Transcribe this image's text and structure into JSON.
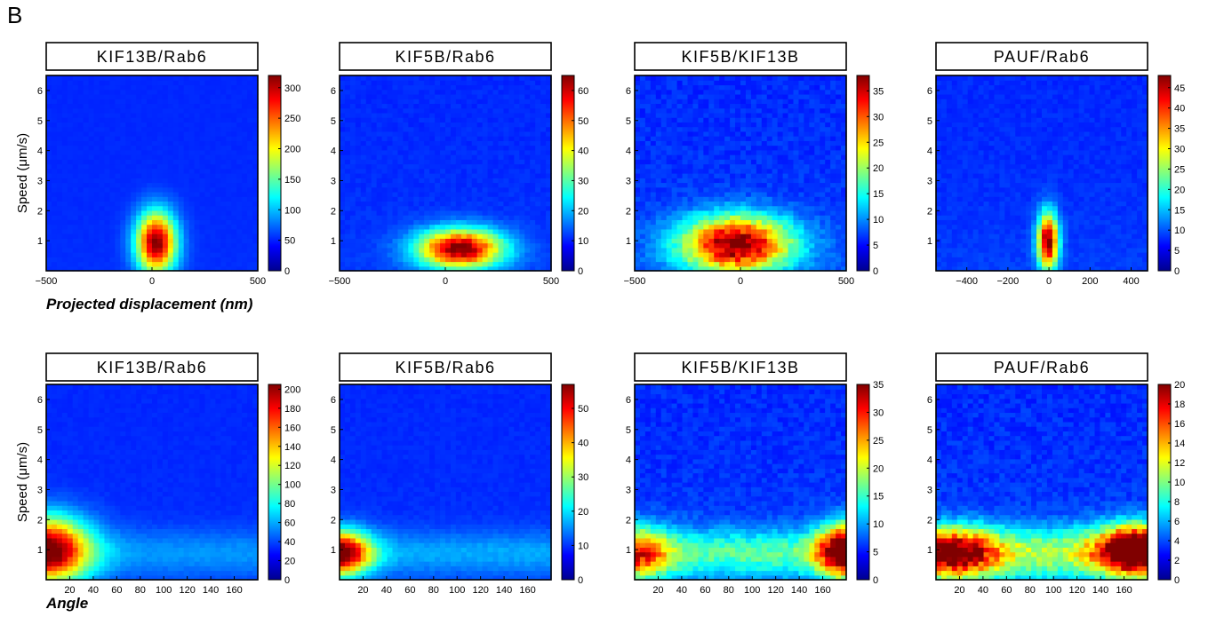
{
  "figure": {
    "panel_label": "B",
    "row_xlabels": [
      "Projected displacement (nm)",
      "Angle"
    ],
    "ylabel": "Speed (μm/s)"
  },
  "chart_data": [
    {
      "type": "heatmap",
      "title": "KIF13B/Rab6",
      "xlim": [
        -500,
        500
      ],
      "ylim": [
        0,
        6.5
      ],
      "xticks": [
        -500,
        0,
        500
      ],
      "xtick_labels": [
        "−500",
        "0",
        "500"
      ],
      "yticks": [
        1,
        2,
        3,
        4,
        5,
        6
      ],
      "colorbar": {
        "min": 0,
        "max": 320,
        "ticks": [
          0,
          50,
          100,
          150,
          200,
          250,
          300
        ]
      },
      "peak": {
        "x": 20,
        "y": 0.95,
        "sx": 65,
        "sy": 0.7
      },
      "noise": 0.04,
      "colormap": "jet"
    },
    {
      "type": "heatmap",
      "title": "KIF5B/Rab6",
      "xlim": [
        -500,
        500
      ],
      "ylim": [
        0,
        6.5
      ],
      "xticks": [
        -500,
        0,
        500
      ],
      "xtick_labels": [
        "−500",
        "0",
        "500"
      ],
      "yticks": [
        1,
        2,
        3,
        4,
        5,
        6
      ],
      "colorbar": {
        "min": 0,
        "max": 65,
        "ticks": [
          0,
          10,
          20,
          30,
          40,
          50,
          60
        ]
      },
      "peak": {
        "x": 70,
        "y": 0.75,
        "sx": 140,
        "sy": 0.45
      },
      "noise": 0.1,
      "colormap": "jet"
    },
    {
      "type": "heatmap",
      "title": "KIF5B/KIF13B",
      "xlim": [
        -500,
        500
      ],
      "ylim": [
        0,
        6.5
      ],
      "xticks": [
        -500,
        0,
        500
      ],
      "xtick_labels": [
        "−500",
        "0",
        "500"
      ],
      "yticks": [
        1,
        2,
        3,
        4,
        5,
        6
      ],
      "colorbar": {
        "min": 0,
        "max": 38,
        "ticks": [
          0,
          5,
          10,
          15,
          20,
          25,
          30,
          35
        ]
      },
      "peak": {
        "x": -20,
        "y": 0.9,
        "sx": 180,
        "sy": 0.65
      },
      "noise": 0.2,
      "colormap": "jet"
    },
    {
      "type": "heatmap",
      "title": "PAUF/Rab6",
      "xlim": [
        -550,
        480
      ],
      "ylim": [
        0,
        6.5
      ],
      "xticks": [
        -400,
        -200,
        0,
        200,
        400
      ],
      "xtick_labels": [
        "−400",
        "−200",
        "0",
        "200",
        "400"
      ],
      "yticks": [
        1,
        2,
        3,
        4,
        5,
        6
      ],
      "colorbar": {
        "min": 0,
        "max": 48,
        "ticks": [
          0,
          5,
          10,
          15,
          20,
          25,
          30,
          35,
          40,
          45
        ]
      },
      "peak": {
        "x": -5,
        "y": 1.0,
        "sx": 35,
        "sy": 0.65
      },
      "noise": 0.12,
      "colormap": "jet"
    },
    {
      "type": "heatmap",
      "title": "KIF13B/Rab6",
      "xlim": [
        0,
        180
      ],
      "ylim": [
        0,
        6.5
      ],
      "xticks": [
        20,
        40,
        60,
        80,
        100,
        120,
        140,
        160
      ],
      "xtick_labels": [
        "20",
        "40",
        "60",
        "80",
        "100",
        "120",
        "140",
        "160"
      ],
      "yticks": [
        1,
        2,
        3,
        4,
        5,
        6
      ],
      "colorbar": {
        "min": 0,
        "max": 205,
        "ticks": [
          0,
          20,
          40,
          60,
          80,
          100,
          120,
          140,
          160,
          180,
          200
        ]
      },
      "peak": {
        "x": 0,
        "y": 1.0,
        "sx": 25,
        "sy": 0.75
      },
      "floor": {
        "amp": 0.12,
        "sy": 0.55
      },
      "noise": 0.06,
      "colormap": "jet"
    },
    {
      "type": "heatmap",
      "title": "KIF5B/Rab6",
      "xlim": [
        0,
        180
      ],
      "ylim": [
        0,
        6.5
      ],
      "xticks": [
        20,
        40,
        60,
        80,
        100,
        120,
        140,
        160
      ],
      "xtick_labels": [
        "20",
        "40",
        "60",
        "80",
        "100",
        "120",
        "140",
        "160"
      ],
      "yticks": [
        1,
        2,
        3,
        4,
        5,
        6
      ],
      "colorbar": {
        "min": 0,
        "max": 57,
        "ticks": [
          0,
          10,
          20,
          30,
          40,
          50
        ]
      },
      "peak": {
        "x": 0,
        "y": 0.9,
        "sx": 18,
        "sy": 0.5
      },
      "floor": {
        "amp": 0.14,
        "sy": 0.5
      },
      "noise": 0.08,
      "colormap": "jet"
    },
    {
      "type": "heatmap",
      "title": "KIF5B/KIF13B",
      "xlim": [
        0,
        180
      ],
      "ylim": [
        0,
        6.5
      ],
      "xticks": [
        20,
        40,
        60,
        80,
        100,
        120,
        140,
        160
      ],
      "xtick_labels": [
        "20",
        "40",
        "60",
        "80",
        "100",
        "120",
        "140",
        "160"
      ],
      "yticks": [
        1,
        2,
        3,
        4,
        5,
        6
      ],
      "colorbar": {
        "min": 0,
        "max": 35,
        "ticks": [
          0,
          5,
          10,
          15,
          20,
          25,
          30,
          35
        ]
      },
      "peak": {
        "x": 180,
        "y": 1.0,
        "sx": 16,
        "sy": 0.6
      },
      "peak2": {
        "x": 0,
        "y": 0.9,
        "sx": 20,
        "sy": 0.6,
        "amp": 0.55
      },
      "floor": {
        "amp": 0.32,
        "sy": 0.55
      },
      "noise": 0.2,
      "colormap": "jet"
    },
    {
      "type": "heatmap",
      "title": "PAUF/Rab6",
      "xlim": [
        0,
        180
      ],
      "ylim": [
        0,
        6.5
      ],
      "xticks": [
        20,
        40,
        60,
        80,
        100,
        120,
        140,
        160
      ],
      "xtick_labels": [
        "20",
        "40",
        "60",
        "80",
        "100",
        "120",
        "140",
        "160"
      ],
      "yticks": [
        1,
        2,
        3,
        4,
        5,
        6
      ],
      "colorbar": {
        "min": 0,
        "max": 20,
        "ticks": [
          0,
          2,
          4,
          6,
          8,
          10,
          12,
          14,
          16,
          18,
          20
        ]
      },
      "peak": {
        "x": 170,
        "y": 1.0,
        "sx": 22,
        "sy": 0.55
      },
      "peak2": {
        "x": 15,
        "y": 0.9,
        "sx": 25,
        "sy": 0.55,
        "amp": 0.7
      },
      "floor": {
        "amp": 0.42,
        "sy": 0.6
      },
      "noise": 0.22,
      "colormap": "jet"
    }
  ]
}
